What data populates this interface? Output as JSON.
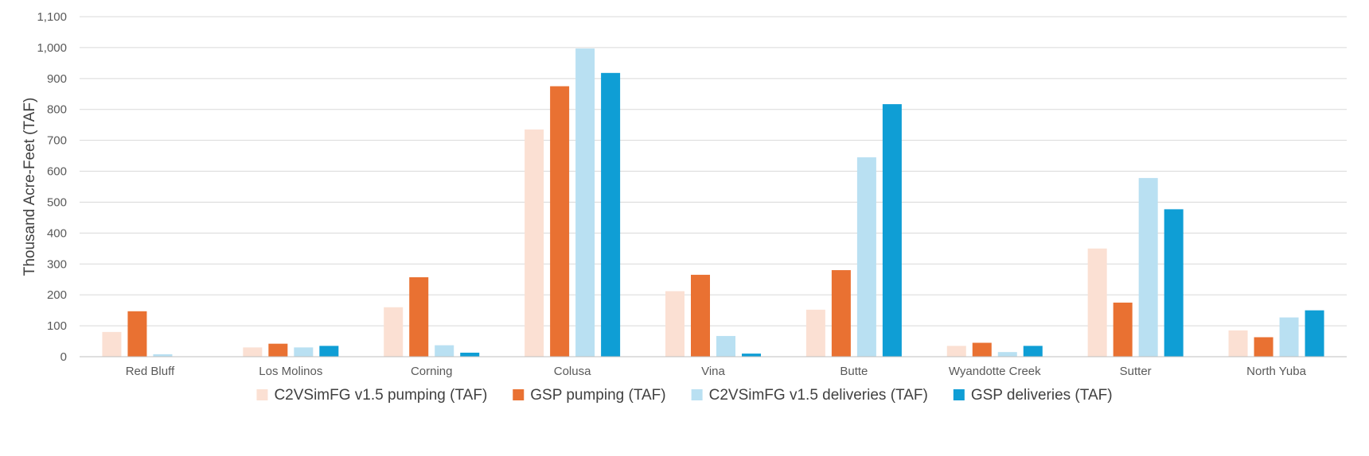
{
  "chart_data": {
    "type": "bar",
    "title": "",
    "xlabel": "",
    "ylabel": "Thousand Acre-Feet (TAF)",
    "ylim": [
      0,
      1100
    ],
    "yticks": [
      0,
      100,
      200,
      300,
      400,
      500,
      600,
      700,
      800,
      900,
      1000,
      1100
    ],
    "ytick_labels": [
      "0",
      "100",
      "200",
      "300",
      "400",
      "500",
      "600",
      "700",
      "800",
      "900",
      "1,000",
      "1,100"
    ],
    "grid": true,
    "legend_position": "bottom",
    "categories": [
      "Red Bluff",
      "Los Molinos",
      "Corning",
      "Colusa",
      "Vina",
      "Butte",
      "Wyandotte Creek",
      "Sutter",
      "North Yuba"
    ],
    "series": [
      {
        "name": "C2VSimFG v1.5 pumping (TAF)",
        "color": "#fbe0d3",
        "values": [
          80,
          30,
          160,
          735,
          212,
          152,
          35,
          350,
          85
        ]
      },
      {
        "name": "GSP pumping (TAF)",
        "color": "#e97132",
        "values": [
          147,
          42,
          257,
          875,
          265,
          280,
          45,
          175,
          63
        ]
      },
      {
        "name": "C2VSimFG v1.5 deliveries (TAF)",
        "color": "#b9e0f2",
        "values": [
          8,
          30,
          37,
          997,
          67,
          645,
          15,
          578,
          127
        ]
      },
      {
        "name": "GSP deliveries (TAF)",
        "color": "#0f9ed5",
        "values": [
          0,
          35,
          13,
          918,
          10,
          817,
          35,
          477,
          150
        ]
      }
    ]
  }
}
